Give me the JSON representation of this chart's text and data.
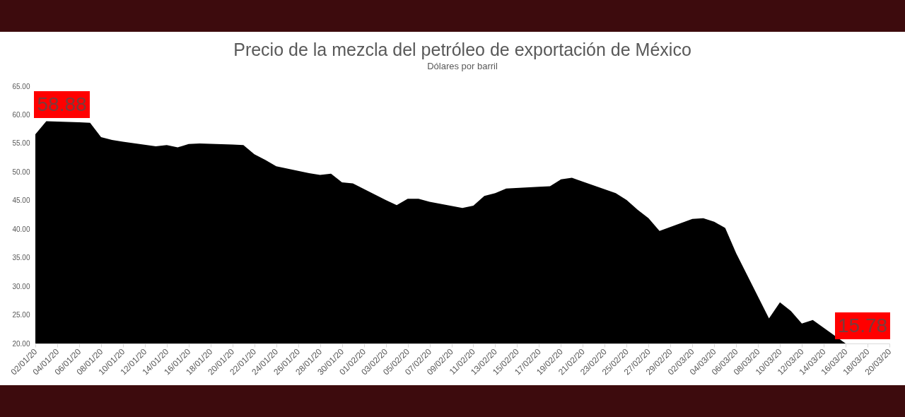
{
  "chart_data": {
    "type": "area",
    "title": "Precio de la mezcla del petróleo de exportación de México",
    "subtitle": "Dólares por barril",
    "x": [
      "--01-02",
      "--01-03",
      "--01-06",
      "--01-07",
      "--01-08",
      "--01-09",
      "--01-10",
      "--01-13",
      "--01-14",
      "--01-15",
      "--01-16",
      "--01-17",
      "--01-20",
      "--01-21",
      "--01-22",
      "--01-23",
      "--01-24",
      "--01-27",
      "--01-28",
      "--01-29",
      "--01-30",
      "--01-31",
      "--02-03",
      "--02-04",
      "--02-05",
      "--02-06",
      "--02-07",
      "--02-10",
      "--02-11",
      "--02-12",
      "--02-13",
      "--02-14",
      "--02-17",
      "--02-18",
      "--02-19",
      "--02-20",
      "--02-21",
      "--02-24",
      "--02-25",
      "--02-26",
      "--02-27",
      "--02-28",
      "--03-02",
      "--03-03",
      "--03-04",
      "--03-05",
      "--03-06",
      "--03-09",
      "--03-10",
      "--03-11",
      "--03-12",
      "--03-13",
      "--03-16"
    ],
    "series": [
      {
        "color": "#000000",
        "values": [
          56.6,
          58.88,
          58.7,
          58.6,
          56.1,
          55.6,
          55.3,
          54.5,
          54.7,
          54.3,
          54.9,
          55.0,
          54.8,
          54.7,
          53.1,
          52.1,
          51.0,
          49.8,
          49.5,
          49.7,
          48.2,
          48.0,
          45.1,
          44.2,
          45.3,
          45.3,
          44.8,
          43.7,
          44.1,
          45.8,
          46.3,
          47.1,
          47.4,
          47.5,
          48.7,
          49.0,
          48.3,
          46.3,
          45.1,
          43.4,
          41.9,
          39.7,
          41.8,
          41.9,
          41.3,
          40.2,
          35.8,
          24.4,
          27.2,
          25.7,
          23.5,
          24.1,
          20.0
        ]
      }
    ],
    "xlim": [
      "--01-02",
      "--03-20"
    ],
    "xticks": [
      {
        "value": "--01-02",
        "label": "02/01/20"
      },
      {
        "value": "--01-04",
        "label": "04/01/20"
      },
      {
        "value": "--01-06",
        "label": "06/01/20"
      },
      {
        "value": "--01-08",
        "label": "08/01/20"
      },
      {
        "value": "--01-10",
        "label": "10/01/20"
      },
      {
        "value": "--01-12",
        "label": "12/01/20"
      },
      {
        "value": "--01-14",
        "label": "14/01/20"
      },
      {
        "value": "--01-16",
        "label": "16/01/20"
      },
      {
        "value": "--01-18",
        "label": "18/01/20"
      },
      {
        "value": "--01-20",
        "label": "20/01/20"
      },
      {
        "value": "--01-22",
        "label": "22/01/20"
      },
      {
        "value": "--01-24",
        "label": "24/01/20"
      },
      {
        "value": "--01-26",
        "label": "26/01/20"
      },
      {
        "value": "--01-28",
        "label": "28/01/20"
      },
      {
        "value": "--01-30",
        "label": "30/01/20"
      },
      {
        "value": "--02-01",
        "label": "01/02/20"
      },
      {
        "value": "--02-03",
        "label": "03/02/20"
      },
      {
        "value": "--02-05",
        "label": "05/02/20"
      },
      {
        "value": "--02-07",
        "label": "07/02/20"
      },
      {
        "value": "--02-09",
        "label": "09/02/20"
      },
      {
        "value": "--02-11",
        "label": "11/02/20"
      },
      {
        "value": "--02-13",
        "label": "13/02/20"
      },
      {
        "value": "--02-15",
        "label": "15/02/20"
      },
      {
        "value": "--02-17",
        "label": "17/02/20"
      },
      {
        "value": "--02-19",
        "label": "19/02/20"
      },
      {
        "value": "--02-21",
        "label": "21/02/20"
      },
      {
        "value": "--02-23",
        "label": "23/02/20"
      },
      {
        "value": "--02-25",
        "label": "25/02/20"
      },
      {
        "value": "--02-27",
        "label": "27/02/20"
      },
      {
        "value": "--02-29",
        "label": "29/02/20"
      },
      {
        "value": "--03-02",
        "label": "02/03/20"
      },
      {
        "value": "--03-04",
        "label": "04/03/20"
      },
      {
        "value": "--03-06",
        "label": "06/03/20"
      },
      {
        "value": "--03-08",
        "label": "08/03/20"
      },
      {
        "value": "--03-10",
        "label": "10/03/20"
      },
      {
        "value": "--03-12",
        "label": "12/03/20"
      },
      {
        "value": "--03-14",
        "label": "14/03/20"
      },
      {
        "value": "--03-16",
        "label": "16/03/20"
      },
      {
        "value": "--03-18",
        "label": "18/03/20"
      },
      {
        "value": "--03-20",
        "label": "20/03/20"
      }
    ],
    "ylim": [
      20,
      65
    ],
    "yticks": [
      {
        "value": 20,
        "label": "20.00"
      },
      {
        "value": 25,
        "label": "25.00"
      },
      {
        "value": 30,
        "label": "30.00"
      },
      {
        "value": 35,
        "label": "35.00"
      },
      {
        "value": 40,
        "label": "40.00"
      },
      {
        "value": 45,
        "label": "45.00"
      },
      {
        "value": 50,
        "label": "50.00"
      },
      {
        "value": 55,
        "label": "55.00"
      },
      {
        "value": 60,
        "label": "60.00"
      },
      {
        "value": 65,
        "label": "65.00"
      }
    ],
    "annotations": [
      {
        "text": "58.88",
        "x": "--01-03",
        "y": 58.88
      },
      "15.78"
    ]
  }
}
